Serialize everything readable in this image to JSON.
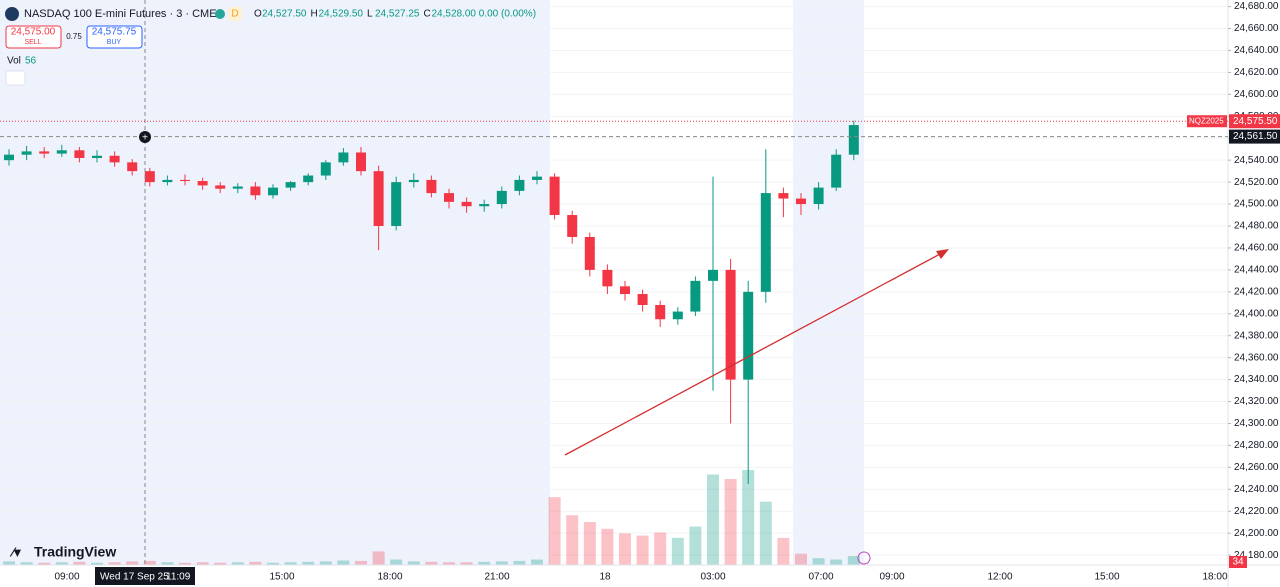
{
  "header": {
    "symbol": "NASDAQ 100 E-mini Futures · 3 · CME",
    "flag": "D",
    "ohlc": [
      [
        "O",
        "24,527.50"
      ],
      [
        "H",
        "24,529.50"
      ],
      [
        "L",
        "24,527.25"
      ],
      [
        "C",
        "24,528.00 0.00 (0.00%)"
      ]
    ],
    "sell": {
      "price": "24,575.00",
      "label": "SELL"
    },
    "spread": "0.75",
    "buy": {
      "price": "24,575.75",
      "label": "BUY"
    },
    "volume_label": "Vol",
    "volume_value": "56"
  },
  "chart_data": {
    "type": "candlestick",
    "up_color": "#089981",
    "down_color": "#f23645",
    "open": [
      24540,
      24545,
      24548,
      24546,
      24549,
      24542,
      24544,
      24538,
      24530,
      24520,
      24522,
      24521,
      24517,
      24514,
      24516,
      24508,
      24515,
      24520,
      24526,
      24538,
      24547,
      24530,
      24480,
      24520,
      24522,
      24510,
      24502,
      24498,
      24500,
      24512,
      24522,
      24525,
      24490,
      24470,
      24440,
      24425,
      24418,
      24408,
      24395,
      24402,
      24430,
      24440,
      24340,
      24420,
      24510,
      24505,
      24500,
      24515,
      24545
    ],
    "high": [
      24550,
      24553,
      24552,
      24554,
      24552,
      24549,
      24548,
      24541,
      24533,
      24526,
      24527,
      24524,
      24520,
      24519,
      24520,
      24518,
      24521,
      24528,
      24540,
      24551,
      24552,
      24535,
      24525,
      24528,
      24526,
      24514,
      24506,
      24504,
      24516,
      24526,
      24530,
      24528,
      24494,
      24474,
      24445,
      24430,
      24422,
      24412,
      24406,
      24434,
      24525,
      24450,
      24430,
      24550,
      24515,
      24510,
      24520,
      24550,
      24576
    ],
    "low": [
      24535,
      24540,
      24542,
      24543,
      24538,
      24538,
      24534,
      24526,
      24516,
      24517,
      24517,
      24513,
      24510,
      24510,
      24504,
      24505,
      24512,
      24517,
      24522,
      24535,
      24526,
      24458,
      24476,
      24515,
      24506,
      24496,
      24492,
      24493,
      24496,
      24508,
      24518,
      24486,
      24464,
      24434,
      24418,
      24412,
      24402,
      24388,
      24390,
      24398,
      24330,
      24300,
      24245,
      24410,
      24488,
      24490,
      24495,
      24512,
      24540
    ],
    "close": [
      24545,
      24548,
      24546,
      24549,
      24542,
      24544,
      24538,
      24530,
      24520,
      24522,
      24521,
      24517,
      24514,
      24516,
      24508,
      24515,
      24520,
      24526,
      24538,
      24547,
      24530,
      24480,
      24520,
      24522,
      24510,
      24502,
      24498,
      24500,
      24512,
      24522,
      24525,
      24490,
      24470,
      24440,
      24425,
      24418,
      24408,
      24395,
      24402,
      24430,
      24440,
      24340,
      24420,
      24510,
      24505,
      24500,
      24515,
      24545,
      24572
    ],
    "volume": [
      8,
      6,
      5,
      6,
      7,
      5,
      6,
      8,
      9,
      6,
      5,
      6,
      5,
      6,
      7,
      5,
      6,
      7,
      8,
      10,
      9,
      30,
      12,
      8,
      7,
      6,
      6,
      7,
      8,
      9,
      12,
      150,
      110,
      95,
      80,
      70,
      65,
      72,
      60,
      85,
      200,
      190,
      210,
      140,
      60,
      25,
      15,
      12,
      20
    ],
    "ylim": [
      24171,
      24686
    ],
    "yticks": [
      {
        "value": 24680,
        "label": "24,680.00"
      },
      {
        "value": 24660,
        "label": "24,660.00"
      },
      {
        "value": 24640,
        "label": "24,640.00"
      },
      {
        "value": 24620,
        "label": "24,620.00"
      },
      {
        "value": 24600,
        "label": "24,600.00"
      },
      {
        "value": 24580,
        "label": "24,580.00"
      },
      {
        "value": 24560,
        "label": "24,560.00"
      },
      {
        "value": 24540,
        "label": "24,540.00"
      },
      {
        "value": 24520,
        "label": "24,520.00"
      },
      {
        "value": 24500,
        "label": "24,500.00"
      },
      {
        "value": 24480,
        "label": "24,480.00"
      },
      {
        "value": 24460,
        "label": "24,460.00"
      },
      {
        "value": 24440,
        "label": "24,440.00"
      },
      {
        "value": 24420,
        "label": "24,420.00"
      },
      {
        "value": 24400,
        "label": "24,400.00"
      },
      {
        "value": 24380,
        "label": "24,380.00"
      },
      {
        "value": 24360,
        "label": "24,360.00"
      },
      {
        "value": 24340,
        "label": "24,340.00"
      },
      {
        "value": 24320,
        "label": "24,320.00"
      },
      {
        "value": 24300,
        "label": "24,300.00"
      },
      {
        "value": 24280,
        "label": "24,280.00"
      },
      {
        "value": 24260,
        "label": "24,260.00"
      },
      {
        "value": 24240,
        "label": "24,240.00"
      },
      {
        "value": 24220,
        "label": "24,220.00"
      },
      {
        "value": 24200,
        "label": "24,200.00"
      },
      {
        "value": 24180,
        "label": "24,180.00"
      }
    ],
    "xlabels": [
      "09:00",
      "15:00",
      "18:00",
      "21:00",
      "18",
      "03:00",
      "07:00",
      "09:00",
      "12:00",
      "15:00",
      "18:00"
    ],
    "last_price": {
      "value": 24575.5,
      "label": "24,575.50"
    },
    "contract": "NQZ2025",
    "crosshair": {
      "price": {
        "value": 24561.5,
        "label": "24,561.50"
      },
      "date": "Wed 17 Sep 25",
      "clock": "11:09"
    }
  },
  "brand": "TradingView",
  "badge": "34"
}
